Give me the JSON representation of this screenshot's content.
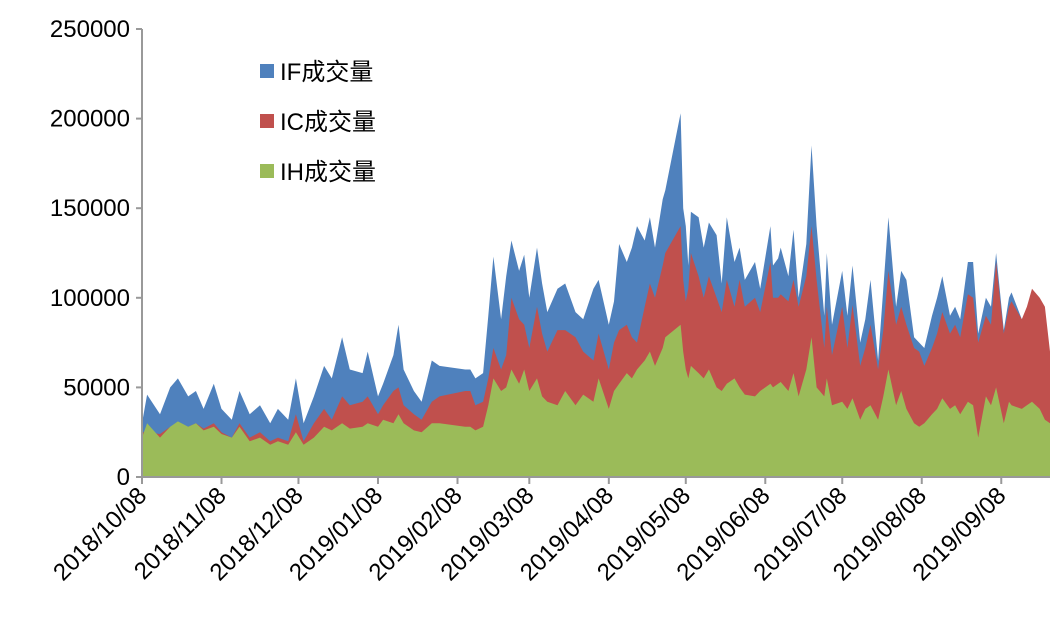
{
  "chart_data": {
    "type": "area",
    "overlap": true,
    "title": "",
    "xlabel": "",
    "ylabel": "",
    "ylim": [
      0,
      250000
    ],
    "yticks": [
      0,
      50000,
      100000,
      150000,
      200000,
      250000
    ],
    "xlim": [
      "2018/10/08",
      "2019/09/27"
    ],
    "xticks": [
      "2018/10/08",
      "2018/11/08",
      "2018/12/08",
      "2019/01/08",
      "2019/02/08",
      "2019/03/08",
      "2019/04/08",
      "2019/05/08",
      "2019/06/08",
      "2019/07/08",
      "2019/08/08",
      "2019/09/08"
    ],
    "grid": false,
    "legend": "top-left",
    "x": [
      "2018/10/08",
      "2018/10/10",
      "2018/10/15",
      "2018/10/19",
      "2018/10/22",
      "2018/10/26",
      "2018/10/29",
      "2018/11/01",
      "2018/11/05",
      "2018/11/08",
      "2018/11/12",
      "2018/11/15",
      "2018/11/19",
      "2018/11/23",
      "2018/11/27",
      "2018/11/30",
      "2018/12/04",
      "2018/12/07",
      "2018/12/10",
      "2018/12/14",
      "2018/12/18",
      "2018/12/21",
      "2018/12/25",
      "2018/12/28",
      "2019/01/02",
      "2019/01/04",
      "2019/01/08",
      "2019/01/10",
      "2019/01/14",
      "2019/01/16",
      "2019/01/18",
      "2019/01/22",
      "2019/01/25",
      "2019/01/29",
      "2019/02/01",
      "2019/02/11",
      "2019/02/13",
      "2019/02/15",
      "2019/02/18",
      "2019/02/20",
      "2019/02/22",
      "2019/02/25",
      "2019/02/27",
      "2019/03/01",
      "2019/03/04",
      "2019/03/06",
      "2019/03/08",
      "2019/03/11",
      "2019/03/13",
      "2019/03/15",
      "2019/03/19",
      "2019/03/22",
      "2019/03/26",
      "2019/03/29",
      "2019/04/02",
      "2019/04/04",
      "2019/04/08",
      "2019/04/10",
      "2019/04/12",
      "2019/04/15",
      "2019/04/17",
      "2019/04/19",
      "2019/04/22",
      "2019/04/24",
      "2019/04/26",
      "2019/04/29",
      "2019/04/30",
      "2019/05/06",
      "2019/05/07",
      "2019/05/08",
      "2019/05/09",
      "2019/05/10",
      "2019/05/13",
      "2019/05/15",
      "2019/05/17",
      "2019/05/20",
      "2019/05/22",
      "2019/05/24",
      "2019/05/27",
      "2019/05/29",
      "2019/05/31",
      "2019/06/04",
      "2019/06/06",
      "2019/06/10",
      "2019/06/11",
      "2019/06/13",
      "2019/06/14",
      "2019/06/17",
      "2019/06/19",
      "2019/06/21",
      "2019/06/24",
      "2019/06/26",
      "2019/06/28",
      "2019/07/01",
      "2019/07/02",
      "2019/07/04",
      "2019/07/08",
      "2019/07/10",
      "2019/07/12",
      "2019/07/15",
      "2019/07/17",
      "2019/07/19",
      "2019/07/22",
      "2019/07/24",
      "2019/07/26",
      "2019/07/29",
      "2019/07/31",
      "2019/08/02",
      "2019/08/05",
      "2019/08/07",
      "2019/08/09",
      "2019/08/12",
      "2019/08/14",
      "2019/08/16",
      "2019/08/19",
      "2019/08/21",
      "2019/08/23",
      "2019/08/26",
      "2019/08/28",
      "2019/08/30",
      "2019/09/02",
      "2019/09/04",
      "2019/09/06",
      "2019/09/09",
      "2019/09/11",
      "2019/09/12",
      "2019/09/16",
      "2019/09/18",
      "2019/09/20",
      "2019/09/23",
      "2019/09/25",
      "2019/09/27"
    ],
    "series": [
      {
        "name": "IF成交量",
        "color": "#4F81BD",
        "values": [
          30000,
          46000,
          35000,
          50000,
          55000,
          45000,
          48000,
          38000,
          52000,
          38000,
          32000,
          48000,
          35000,
          40000,
          30000,
          38000,
          32000,
          55000,
          30000,
          45000,
          62000,
          55000,
          78000,
          60000,
          58000,
          70000,
          45000,
          52000,
          68000,
          85000,
          60000,
          48000,
          42000,
          65000,
          62000,
          60000,
          60000,
          55000,
          58000,
          90000,
          123000,
          88000,
          112000,
          132000,
          115000,
          124000,
          100000,
          128000,
          108000,
          92000,
          105000,
          108000,
          92000,
          88000,
          105000,
          110000,
          85000,
          98000,
          130000,
          120000,
          128000,
          140000,
          132000,
          145000,
          128000,
          155000,
          160000,
          203000,
          150000,
          140000,
          118000,
          148000,
          145000,
          128000,
          142000,
          135000,
          108000,
          145000,
          120000,
          128000,
          110000,
          120000,
          105000,
          140000,
          118000,
          122000,
          128000,
          112000,
          138000,
          100000,
          130000,
          185000,
          140000,
          90000,
          125000,
          85000,
          115000,
          90000,
          118000,
          75000,
          88000,
          110000,
          65000,
          105000,
          145000,
          95000,
          115000,
          110000,
          78000,
          75000,
          72000,
          90000,
          100000,
          112000,
          90000,
          95000,
          88000,
          120000,
          120000,
          80000,
          100000,
          95000,
          125000,
          82000,
          100000,
          103000,
          88000,
          90000,
          85000,
          80000,
          75000,
          60000
        ]
      },
      {
        "name": "IC成交量",
        "color": "#C0504D",
        "values": [
          25000,
          25000,
          24000,
          28000,
          30000,
          28000,
          30000,
          27000,
          30000,
          25000,
          22000,
          30000,
          22000,
          25000,
          20000,
          22000,
          20000,
          35000,
          20000,
          30000,
          38000,
          32000,
          45000,
          40000,
          42000,
          45000,
          35000,
          40000,
          48000,
          50000,
          40000,
          35000,
          32000,
          42000,
          45000,
          48000,
          48000,
          40000,
          42000,
          55000,
          72000,
          60000,
          68000,
          100000,
          88000,
          85000,
          72000,
          95000,
          80000,
          70000,
          82000,
          82000,
          78000,
          70000,
          65000,
          80000,
          60000,
          75000,
          82000,
          85000,
          78000,
          75000,
          95000,
          108000,
          100000,
          118000,
          125000,
          140000,
          110000,
          98000,
          105000,
          125000,
          112000,
          100000,
          112000,
          100000,
          92000,
          110000,
          95000,
          110000,
          95000,
          100000,
          92000,
          120000,
          100000,
          100000,
          102000,
          98000,
          110000,
          95000,
          112000,
          140000,
          110000,
          72000,
          95000,
          68000,
          95000,
          72000,
          96000,
          62000,
          72000,
          85000,
          60000,
          82000,
          115000,
          85000,
          95000,
          85000,
          72000,
          70000,
          62000,
          72000,
          80000,
          92000,
          80000,
          85000,
          78000,
          102000,
          100000,
          75000,
          90000,
          85000,
          120000,
          80000,
          95000,
          98000,
          88000,
          95000,
          105000,
          100000,
          95000,
          70000
        ]
      },
      {
        "name": "IH成交量",
        "color": "#9BBB59",
        "values": [
          22000,
          30000,
          22000,
          28000,
          31000,
          28000,
          30000,
          26000,
          28000,
          24000,
          22000,
          28000,
          20000,
          22000,
          18000,
          20000,
          18000,
          25000,
          18000,
          22000,
          28000,
          26000,
          30000,
          27000,
          28000,
          30000,
          28000,
          32000,
          30000,
          35000,
          30000,
          26000,
          25000,
          30000,
          30000,
          28000,
          28000,
          26000,
          28000,
          40000,
          55000,
          48000,
          50000,
          60000,
          52000,
          60000,
          48000,
          55000,
          45000,
          42000,
          40000,
          48000,
          40000,
          46000,
          42000,
          55000,
          38000,
          48000,
          52000,
          58000,
          55000,
          60000,
          65000,
          70000,
          62000,
          72000,
          78000,
          85000,
          70000,
          60000,
          55000,
          62000,
          58000,
          55000,
          60000,
          50000,
          48000,
          52000,
          55000,
          50000,
          46000,
          45000,
          48000,
          52000,
          50000,
          52000,
          53000,
          48000,
          58000,
          45000,
          60000,
          78000,
          50000,
          45000,
          55000,
          40000,
          42000,
          38000,
          44000,
          32000,
          38000,
          40000,
          32000,
          45000,
          60000,
          40000,
          48000,
          38000,
          30000,
          28000,
          30000,
          35000,
          38000,
          44000,
          38000,
          40000,
          35000,
          42000,
          40000,
          22000,
          45000,
          40000,
          50000,
          30000,
          42000,
          40000,
          38000,
          40000,
          42000,
          38000,
          32000,
          30000
        ]
      }
    ]
  }
}
